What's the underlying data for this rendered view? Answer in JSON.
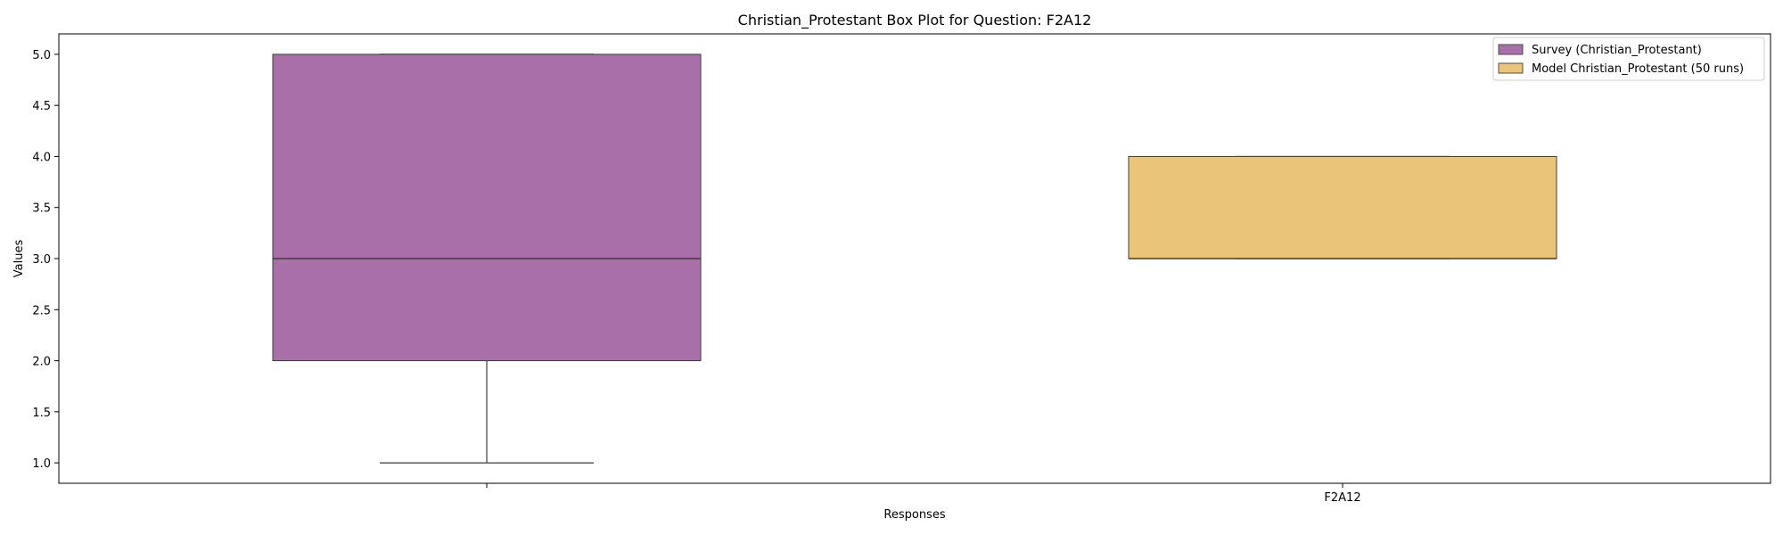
{
  "chart_data": {
    "type": "box",
    "title": "Christian_Protestant Box Plot for Question: F2A12",
    "xlabel": "Responses",
    "ylabel": "Values",
    "ylim": [
      0.8,
      5.2
    ],
    "yticks": [
      "1.0",
      "1.5",
      "2.0",
      "2.5",
      "3.0",
      "3.5",
      "4.0",
      "4.5",
      "5.0"
    ],
    "categories": [
      "",
      "F2A12"
    ],
    "legend_position": "top-right",
    "series": [
      {
        "name": "Survey (Christian_Protestant)",
        "color": "#a86fa9",
        "category_index": 0,
        "whisker_low": 1.0,
        "q1": 2.0,
        "median": 3.0,
        "q3": 5.0,
        "whisker_high": 5.0
      },
      {
        "name": "Model Christian_Protestant (50 runs)",
        "color": "#eac479",
        "category_index": 1,
        "whisker_low": 3.0,
        "q1": 3.0,
        "median": 3.0,
        "q3": 4.0,
        "whisker_high": 4.0
      }
    ]
  }
}
